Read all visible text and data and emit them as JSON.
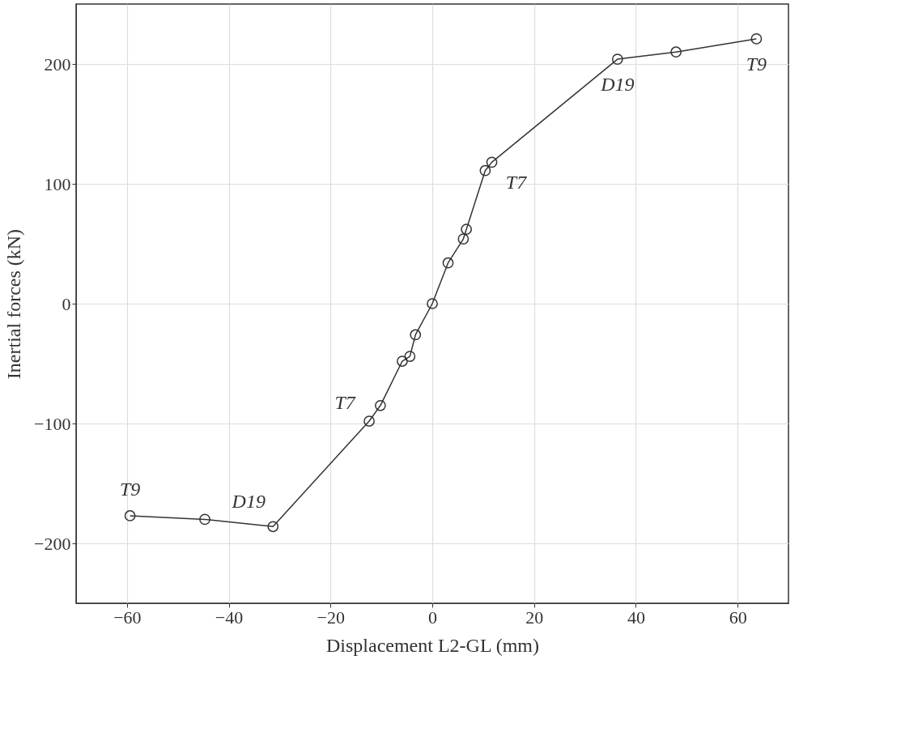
{
  "chart_data": {
    "type": "line",
    "xlabel": "Displacement L2-GL (mm)",
    "ylabel": "Inertial forces (kN)",
    "x": [
      -59.4,
      -44.7,
      -31.3,
      -12.4,
      -10.2,
      -5.9,
      -4.4,
      -3.3,
      0,
      3.1,
      6.1,
      6.7,
      10.4,
      11.7,
      36.4,
      47.9,
      63.7
    ],
    "series": [
      {
        "color": "#333333",
        "values": [
          -177,
          -180,
          -186,
          -98,
          -85,
          -48,
          -44,
          -26,
          0,
          34,
          54,
          62,
          111,
          118,
          204,
          210,
          221
        ]
      }
    ],
    "xlim": [
      -70,
      70
    ],
    "ylim": [
      -250,
      250
    ],
    "xticks": [
      -60,
      -40,
      -20,
      0,
      20,
      40,
      60
    ],
    "yticks": [
      -200,
      -100,
      0,
      100,
      200
    ],
    "grid": true,
    "marker": "circle",
    "line_style": "solid",
    "annotations": [
      {
        "text": "T9",
        "x": -59.4,
        "y": -177
      },
      {
        "text": "D19",
        "x": -31.3,
        "y": -186
      },
      {
        "text": "T7",
        "x": -12.4,
        "y": -98
      },
      {
        "text": "T7",
        "x": 11.7,
        "y": 118
      },
      {
        "text": "D19",
        "x": 36.4,
        "y": 204
      },
      {
        "text": "T9",
        "x": 63.7,
        "y": 221
      }
    ]
  }
}
